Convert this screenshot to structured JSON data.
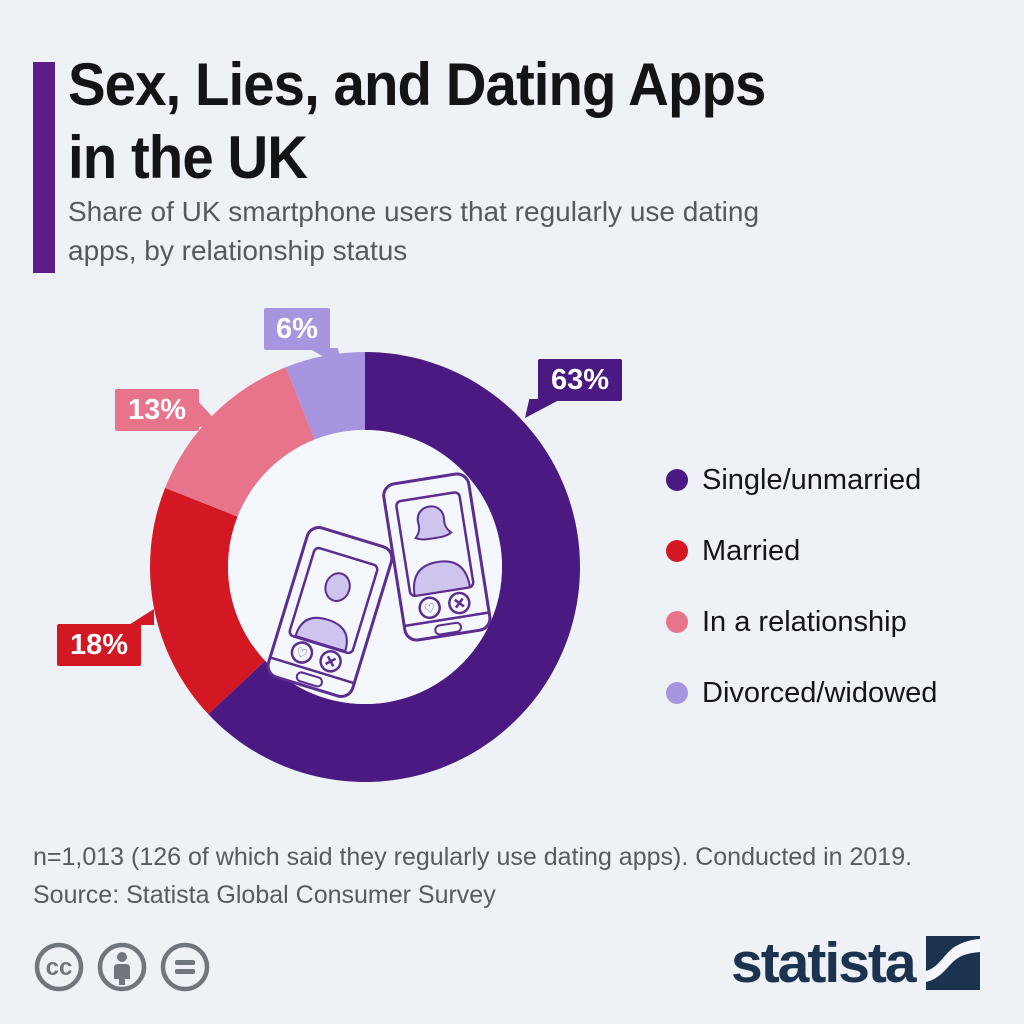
{
  "page": {
    "background": "#eef2f7"
  },
  "header": {
    "accent_color": "#5b1d87",
    "title_line1": "Sex, Lies, and Dating Apps",
    "title_line2": "in the UK",
    "subtitle_line1": "Share of UK smartphone users that regularly use dating",
    "subtitle_line2": "apps, by relationship status"
  },
  "chart_data": {
    "type": "pie",
    "subtype": "donut",
    "title": "Share of UK smartphone users that regularly use dating apps, by relationship status",
    "unit": "%",
    "categories": [
      "Single/unmarried",
      "Married",
      "In a relationship",
      "Divorced/widowed"
    ],
    "values": [
      63,
      18,
      13,
      6
    ],
    "labels": [
      "63%",
      "18%",
      "13%",
      "6%"
    ],
    "colors": [
      "#4a1a82",
      "#d41823",
      "#e8748c",
      "#a795e0"
    ],
    "start_angle_deg": 0,
    "direction": "clockwise",
    "legend_position": "right",
    "inner_circle_color": "#f4f7fb",
    "center_illustration": "two-dating-app-phones"
  },
  "footer": {
    "note": "n=1,013 (126 of which said they regularly use dating apps). Conducted in 2019.",
    "source": "Source: Statista Global Consumer Survey"
  },
  "branding": {
    "logo_text": "statista",
    "logo_color": "#1c3350",
    "license_icons": [
      "cc-icon",
      "cc-by-icon",
      "cc-nd-icon"
    ],
    "license_icon_color": "#6f767d"
  }
}
